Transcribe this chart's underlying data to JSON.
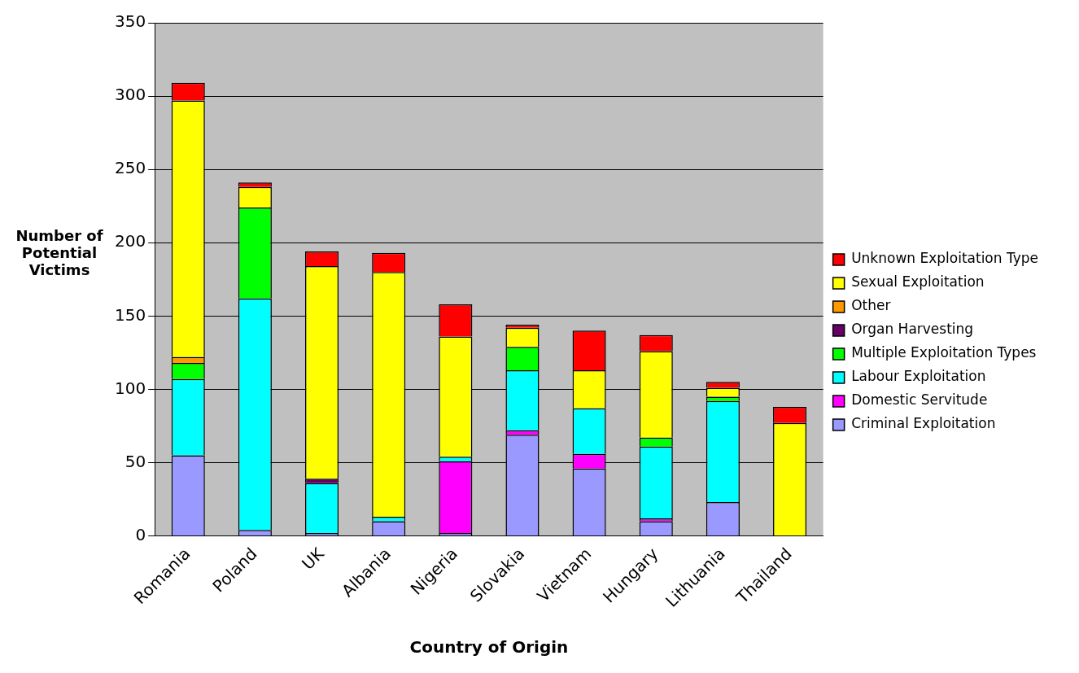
{
  "chart_data": {
    "type": "bar",
    "stacked": true,
    "xlabel": "Country of Origin",
    "ylabel": "Number of Potential Victims",
    "categories": [
      "Romania",
      "Poland",
      "UK",
      "Albania",
      "Nigeria",
      "Slovakia",
      "Vietnam",
      "Hungary",
      "Lithuania",
      "Thailand"
    ],
    "series": [
      {
        "name": "Criminal Exploitation",
        "color": "#9999ff",
        "values": [
          55,
          4,
          2,
          10,
          2,
          69,
          46,
          10,
          23,
          null
        ]
      },
      {
        "name": "Domestic Servitude",
        "color": "#ff00ff",
        "values": [
          0,
          0,
          0,
          0,
          49,
          3,
          10,
          2,
          0,
          0
        ]
      },
      {
        "name": "Labour Exploitation",
        "color": "#00ffff",
        "values": [
          52,
          158,
          34,
          3,
          3,
          41,
          31,
          49,
          69,
          0
        ]
      },
      {
        "name": "Multiple Exploitation Types",
        "color": "#00ff00",
        "values": [
          11,
          62,
          0,
          0,
          0,
          16,
          0,
          6,
          3,
          0
        ]
      },
      {
        "name": "Organ Harvesting",
        "color": "#660066",
        "values": [
          0,
          0,
          3,
          0,
          0,
          0,
          0,
          0,
          0,
          0
        ]
      },
      {
        "name": "Other",
        "color": "#ff9900",
        "values": [
          4,
          0,
          0,
          0,
          0,
          0,
          0,
          0,
          0,
          0
        ]
      },
      {
        "name": "Sexual Exploitation",
        "color": "#ffff00",
        "values": [
          175,
          14,
          145,
          167,
          82,
          13,
          26,
          59,
          6,
          77
        ]
      },
      {
        "name": "Unknown Exploitation Type",
        "color": "#ff0000",
        "values": [
          12,
          3,
          10,
          13,
          22,
          2,
          27,
          11,
          4,
          11
        ]
      }
    ],
    "ylim": [
      0,
      350
    ],
    "yticks": [
      0,
      50,
      100,
      150,
      200,
      250,
      300,
      350
    ],
    "grid": "y",
    "legend": "right"
  }
}
